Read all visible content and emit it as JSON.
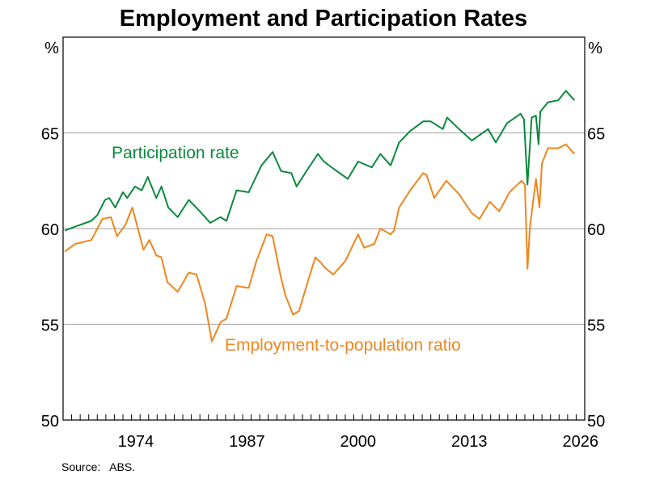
{
  "chart_data": {
    "type": "line",
    "title": "Employment and Participation Rates",
    "ylabel_left": "%",
    "ylabel_right": "%",
    "source": "Source:   ABS.",
    "xlim": [
      1966,
      2027
    ],
    "ylim": [
      50,
      70
    ],
    "yticks": [
      50,
      55,
      60,
      65
    ],
    "xtick_labels": [
      "1974",
      "1987",
      "2000",
      "2013",
      "2026"
    ],
    "grid": true,
    "series": [
      {
        "name": "Participation rate",
        "color": "#0a8a3c",
        "points": [
          [
            1966.2,
            59.9
          ],
          [
            1967.4,
            60.1
          ],
          [
            1969.3,
            60.4
          ],
          [
            1970.0,
            60.7
          ],
          [
            1970.9,
            61.5
          ],
          [
            1971.4,
            61.6
          ],
          [
            1972.1,
            61.1
          ],
          [
            1973.0,
            61.9
          ],
          [
            1973.5,
            61.6
          ],
          [
            1974.4,
            62.2
          ],
          [
            1975.2,
            62.0
          ],
          [
            1975.9,
            62.7
          ],
          [
            1976.9,
            61.6
          ],
          [
            1977.5,
            62.2
          ],
          [
            1978.3,
            61.1
          ],
          [
            1979.4,
            60.6
          ],
          [
            1980.7,
            61.5
          ],
          [
            1982.0,
            60.9
          ],
          [
            1983.2,
            60.3
          ],
          [
            1984.4,
            60.6
          ],
          [
            1985.1,
            60.4
          ],
          [
            1986.3,
            62.0
          ],
          [
            1987.7,
            61.9
          ],
          [
            1989.2,
            63.3
          ],
          [
            1990.5,
            64.0
          ],
          [
            1991.5,
            63.0
          ],
          [
            1992.7,
            62.9
          ],
          [
            1993.3,
            62.2
          ],
          [
            1994.6,
            63.1
          ],
          [
            1995.8,
            63.9
          ],
          [
            1996.5,
            63.5
          ],
          [
            1997.7,
            63.1
          ],
          [
            1999.3,
            62.6
          ],
          [
            2000.5,
            63.5
          ],
          [
            2002.1,
            63.2
          ],
          [
            2003.1,
            63.9
          ],
          [
            2004.3,
            63.3
          ],
          [
            2005.3,
            64.5
          ],
          [
            2006.6,
            65.1
          ],
          [
            2008.1,
            65.6
          ],
          [
            2009.0,
            65.6
          ],
          [
            2010.4,
            65.2
          ],
          [
            2010.9,
            65.8
          ],
          [
            2012.3,
            65.2
          ],
          [
            2013.8,
            64.6
          ],
          [
            2015.7,
            65.2
          ],
          [
            2016.6,
            64.5
          ],
          [
            2017.9,
            65.5
          ],
          [
            2019.5,
            66.0
          ],
          [
            2019.9,
            65.7
          ],
          [
            2020.3,
            62.3
          ],
          [
            2020.8,
            65.8
          ],
          [
            2021.3,
            65.9
          ],
          [
            2021.6,
            64.4
          ],
          [
            2021.8,
            66.1
          ],
          [
            2022.7,
            66.6
          ],
          [
            2023.9,
            66.7
          ],
          [
            2024.8,
            67.2
          ],
          [
            2025.8,
            66.7
          ]
        ]
      },
      {
        "name": "Employment-to-population ratio",
        "color": "#f0861e",
        "points": [
          [
            1966.2,
            58.8
          ],
          [
            1967.4,
            59.2
          ],
          [
            1969.3,
            59.4
          ],
          [
            1970.6,
            60.5
          ],
          [
            1971.6,
            60.6
          ],
          [
            1972.3,
            59.6
          ],
          [
            1973.3,
            60.2
          ],
          [
            1974.1,
            61.1
          ],
          [
            1975.4,
            58.9
          ],
          [
            1976.1,
            59.4
          ],
          [
            1976.9,
            58.6
          ],
          [
            1977.5,
            58.5
          ],
          [
            1978.2,
            57.2
          ],
          [
            1979.4,
            56.7
          ],
          [
            1980.7,
            57.7
          ],
          [
            1981.6,
            57.6
          ],
          [
            1982.6,
            56.1
          ],
          [
            1983.4,
            54.1
          ],
          [
            1984.4,
            55.1
          ],
          [
            1985.1,
            55.3
          ],
          [
            1986.3,
            57.0
          ],
          [
            1987.7,
            56.9
          ],
          [
            1988.6,
            58.3
          ],
          [
            1989.8,
            59.7
          ],
          [
            1990.5,
            59.6
          ],
          [
            1991.4,
            57.6
          ],
          [
            1992.0,
            56.5
          ],
          [
            1992.9,
            55.5
          ],
          [
            1993.6,
            55.7
          ],
          [
            1994.6,
            57.2
          ],
          [
            1995.5,
            58.5
          ],
          [
            1996.2,
            58.2
          ],
          [
            1996.5,
            58.0
          ],
          [
            1997.6,
            57.6
          ],
          [
            1999.0,
            58.3
          ],
          [
            2000.5,
            59.7
          ],
          [
            2001.2,
            59.0
          ],
          [
            2002.4,
            59.2
          ],
          [
            2003.1,
            60.0
          ],
          [
            2004.3,
            59.7
          ],
          [
            2004.7,
            59.9
          ],
          [
            2005.3,
            61.1
          ],
          [
            2006.6,
            62.0
          ],
          [
            2008.1,
            62.9
          ],
          [
            2008.5,
            62.8
          ],
          [
            2009.4,
            61.6
          ],
          [
            2010.8,
            62.5
          ],
          [
            2012.3,
            61.8
          ],
          [
            2013.8,
            60.8
          ],
          [
            2014.7,
            60.5
          ],
          [
            2015.9,
            61.4
          ],
          [
            2017.0,
            60.9
          ],
          [
            2018.2,
            61.9
          ],
          [
            2019.6,
            62.5
          ],
          [
            2020.0,
            62.3
          ],
          [
            2020.3,
            57.9
          ],
          [
            2020.6,
            60.1
          ],
          [
            2021.3,
            62.6
          ],
          [
            2021.7,
            61.1
          ],
          [
            2022.0,
            63.4
          ],
          [
            2022.7,
            64.2
          ],
          [
            2023.9,
            64.2
          ],
          [
            2024.8,
            64.4
          ],
          [
            2025.8,
            63.9
          ]
        ]
      }
    ]
  }
}
